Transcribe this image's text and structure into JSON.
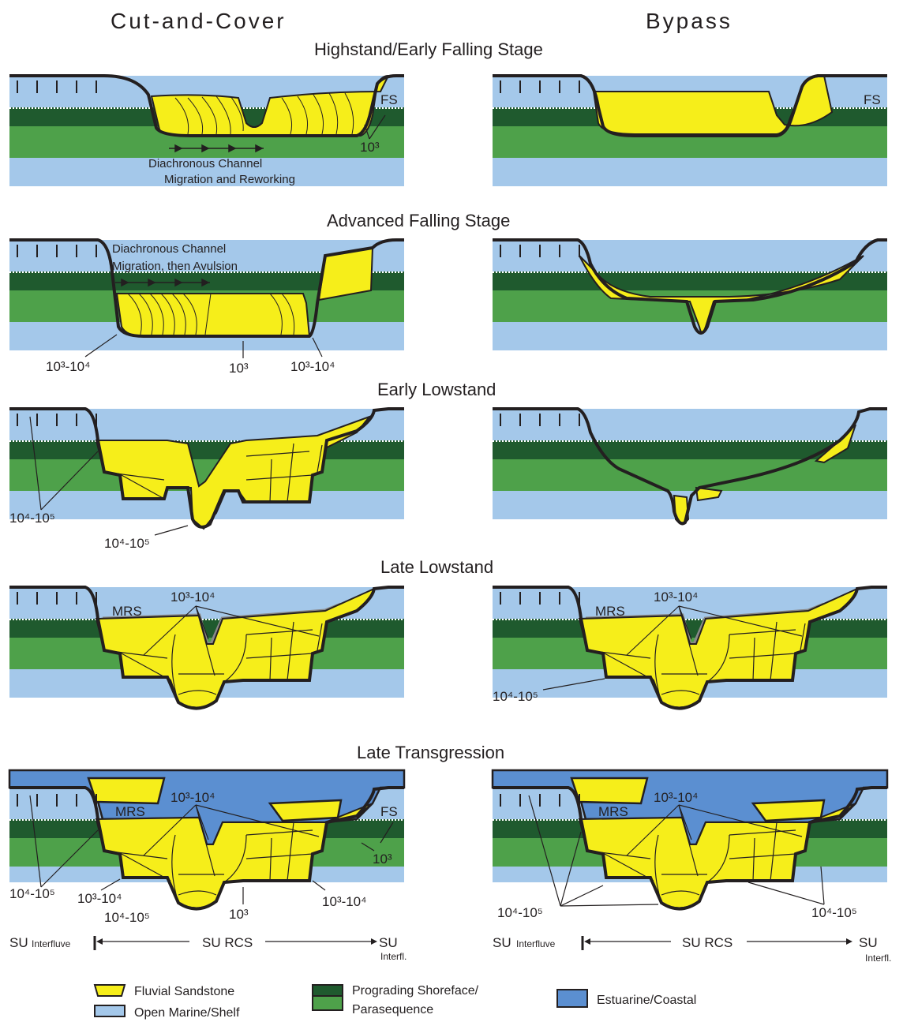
{
  "columns": {
    "left": "Cut-and-Cover",
    "right": "Bypass"
  },
  "stages": [
    "Highstand/Early Falling Stage",
    "Advanced Falling Stage",
    "Early Lowstand",
    "Late Lowstand",
    "Late Transgression"
  ],
  "labels": {
    "fs": "FS",
    "mrs": "MRS",
    "t3": "10³",
    "t34": "10³-10⁴",
    "t45": "10⁴-10⁵",
    "diachronous1_a": "Diachronous Channel",
    "diachronous1_b": "Migration and Reworking",
    "diachronous2_a": "Diachronous Channel",
    "diachronous2_b": "Migration, then Avulsion"
  },
  "bottom_axis": {
    "su": "SU",
    "interfluve": "Interfluve",
    "su_rcs_left": "SU  RCS",
    "su_rcs_right": "SU RCS",
    "interfl": "Interfl."
  },
  "legend": {
    "fluvial": "Fluvial Sandstone",
    "marine": "Open Marine/Shelf",
    "shoreface_a": "Prograding Shoreface/",
    "shoreface_b": "Parasequence",
    "estuarine": "Estuarine/Coastal"
  },
  "colors": {
    "marine": "#a4c8ea",
    "shoreface_dark": "#1f5a2e",
    "shoreface_light": "#4ea14a",
    "fluvial": "#f6ee1a",
    "estuarine": "#5b8fd1",
    "outline": "#231f20"
  }
}
